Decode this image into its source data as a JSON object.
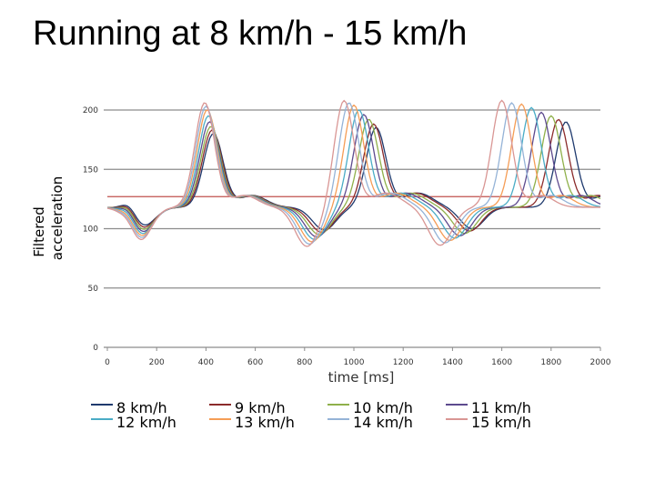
{
  "slide": {
    "title": "Running at 8 km/h - 15 km/h"
  },
  "chart_data": {
    "type": "line",
    "title": "",
    "xlabel": "time [ms]",
    "ylabel": "Filtered acceleration",
    "xlim": [
      0,
      2000
    ],
    "ylim": [
      0,
      200
    ],
    "x_ticks": [
      "0",
      "200",
      "400",
      "600",
      "800",
      "1000",
      "1200",
      "1400",
      "1600",
      "1800",
      "2000"
    ],
    "y_ticks": [
      "0",
      "50",
      "100",
      "150",
      "200"
    ],
    "grid": true,
    "legend_position": "bottom",
    "threshold": {
      "y": 127,
      "color": "#c0504d"
    },
    "series": [
      {
        "name": "8 km/h",
        "color": "#1f3a6e",
        "peaks": [
          [
            430,
            180
          ],
          [
            1090,
            185
          ],
          [
            1860,
            190
          ]
        ],
        "troughs": [
          [
            145,
            102
          ],
          [
            880,
            99
          ],
          [
            1480,
            100
          ]
        ]
      },
      {
        "name": "9 km/h",
        "color": "#8b2b2b",
        "peaks": [
          [
            425,
            183
          ],
          [
            1080,
            188
          ],
          [
            1830,
            192
          ]
        ],
        "troughs": [
          [
            142,
            100
          ],
          [
            870,
            97
          ],
          [
            1470,
            98
          ]
        ]
      },
      {
        "name": "10 km/h",
        "color": "#8fb04a",
        "peaks": [
          [
            420,
            186
          ],
          [
            1060,
            192
          ],
          [
            1800,
            195
          ]
        ],
        "troughs": [
          [
            140,
            98
          ],
          [
            860,
            95
          ],
          [
            1450,
            96
          ]
        ]
      },
      {
        "name": "11 km/h",
        "color": "#5d4a8e",
        "peaks": [
          [
            415,
            190
          ],
          [
            1040,
            196
          ],
          [
            1760,
            198
          ]
        ],
        "troughs": [
          [
            138,
            96
          ],
          [
            850,
            93
          ],
          [
            1430,
            94
          ]
        ]
      },
      {
        "name": "12 km/h",
        "color": "#4aacc6",
        "peaks": [
          [
            410,
            195
          ],
          [
            1020,
            200
          ],
          [
            1720,
            202
          ]
        ],
        "troughs": [
          [
            135,
            94
          ],
          [
            840,
            91
          ],
          [
            1410,
            92
          ]
        ]
      },
      {
        "name": "13 km/h",
        "color": "#f59d56",
        "peaks": [
          [
            405,
            200
          ],
          [
            1000,
            204
          ],
          [
            1680,
            205
          ]
        ],
        "troughs": [
          [
            132,
            92
          ],
          [
            830,
            89
          ],
          [
            1390,
            90
          ]
        ]
      },
      {
        "name": "14 km/h",
        "color": "#95b3d7",
        "peaks": [
          [
            400,
            203
          ],
          [
            980,
            206
          ],
          [
            1640,
            206
          ]
        ],
        "troughs": [
          [
            130,
            90
          ],
          [
            820,
            87
          ],
          [
            1370,
            88
          ]
        ]
      },
      {
        "name": "15 km/h",
        "color": "#d99694",
        "peaks": [
          [
            395,
            206
          ],
          [
            960,
            208
          ],
          [
            1600,
            208
          ]
        ],
        "troughs": [
          [
            128,
            88
          ],
          [
            810,
            85
          ],
          [
            1350,
            86
          ]
        ]
      }
    ]
  }
}
